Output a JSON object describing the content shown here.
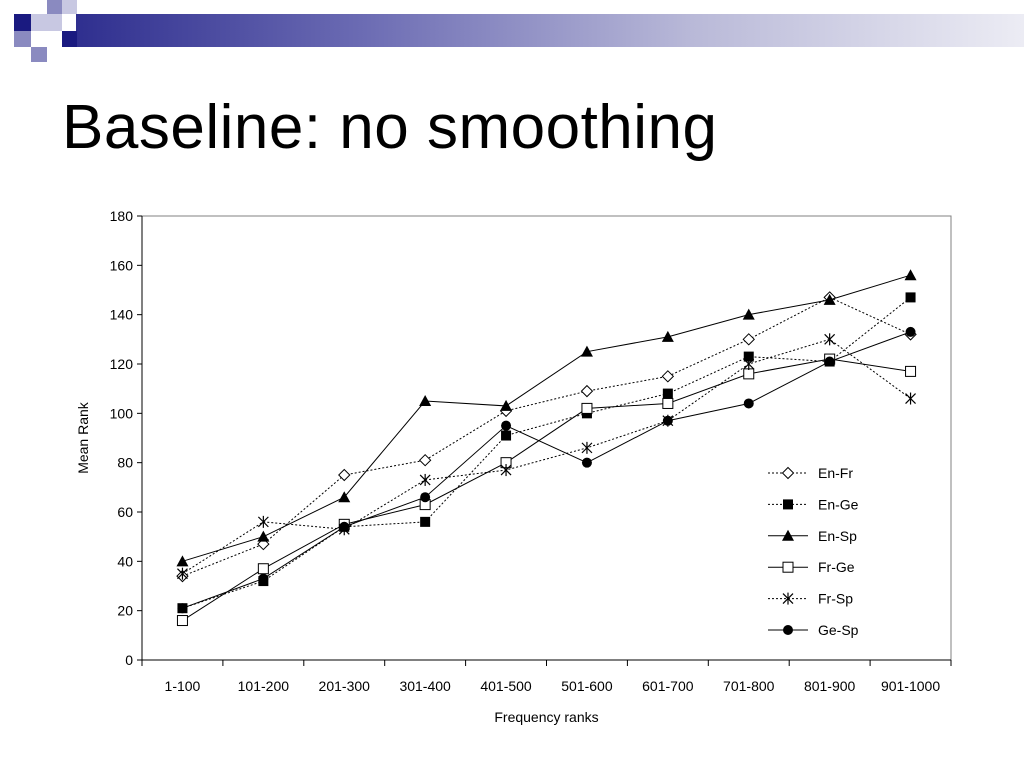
{
  "slide": {
    "title": "Baseline: no smoothing",
    "decoration_colors": {
      "dark": "#1a1a80",
      "mid": "#8a8ac0",
      "light": "#c8c8e2"
    }
  },
  "chart_data": {
    "type": "line",
    "title": "",
    "xlabel": "Frequency ranks",
    "ylabel": "Mean Rank",
    "ylim": [
      0,
      180
    ],
    "yticks": [
      0,
      20,
      40,
      60,
      80,
      100,
      120,
      140,
      160,
      180
    ],
    "grid": false,
    "legend_position": "right",
    "categories": [
      "1-100",
      "101-200",
      "201-300",
      "301-400",
      "401-500",
      "501-600",
      "601-700",
      "701-800",
      "801-900",
      "901-1000"
    ],
    "series": [
      {
        "name": "En-Fr",
        "marker": "diamond-open",
        "line": "dotted",
        "values": [
          34,
          47,
          75,
          81,
          101,
          109,
          115,
          130,
          147,
          132
        ]
      },
      {
        "name": "En-Ge",
        "marker": "square-filled",
        "line": "dotted",
        "values": [
          21,
          32,
          54,
          56,
          91,
          100,
          108,
          123,
          121,
          147
        ]
      },
      {
        "name": "En-Sp",
        "marker": "triangle-filled",
        "line": "solid",
        "values": [
          40,
          50,
          66,
          105,
          103,
          125,
          131,
          140,
          146,
          156
        ]
      },
      {
        "name": "Fr-Ge",
        "marker": "square-open",
        "line": "solid",
        "values": [
          16,
          37,
          55,
          63,
          80,
          102,
          104,
          116,
          122,
          117
        ]
      },
      {
        "name": "Fr-Sp",
        "marker": "star",
        "line": "dotted",
        "values": [
          35,
          56,
          53,
          73,
          77,
          86,
          97,
          120,
          130,
          106
        ]
      },
      {
        "name": "Ge-Sp",
        "marker": "circle-filled",
        "line": "solid",
        "values": [
          21,
          33,
          54,
          66,
          95,
          80,
          97,
          104,
          121,
          133
        ]
      }
    ]
  }
}
